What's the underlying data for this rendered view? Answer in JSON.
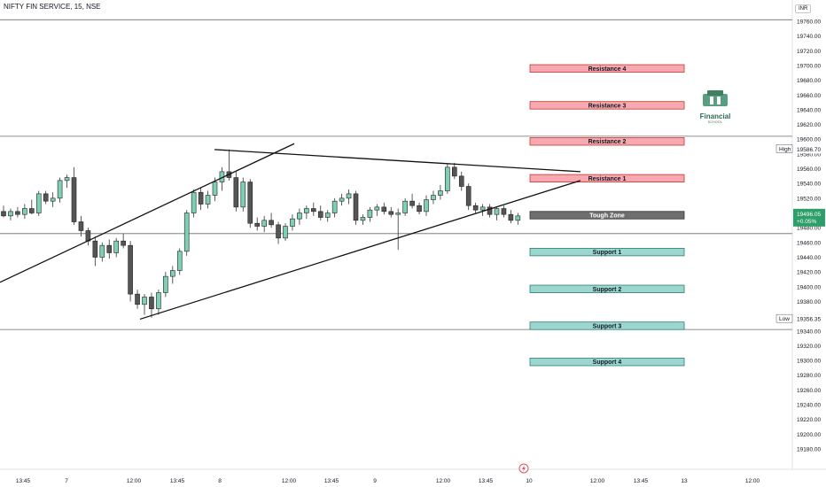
{
  "header": {
    "symbol": "NIFTY FIN SERVICE, 15, NSE",
    "currency": "INR"
  },
  "logo": {
    "title": "Financial",
    "subtitle": "SCHOOL"
  },
  "colors": {
    "up": "#26a69a",
    "down": "#333333",
    "resistance": "#f7a8b0",
    "support": "#9cd7cf",
    "tough": "#6e6e6e",
    "price_tag": "#2e9e6a"
  },
  "chart_data": {
    "type": "candlestick",
    "ylim": [
      19170,
      19770
    ],
    "y_ticks": [
      19760,
      19740,
      19720,
      19700,
      19680,
      19660,
      19640,
      19620,
      19600,
      19580,
      19560,
      19540,
      19520,
      19500,
      19480,
      19460,
      19440,
      19420,
      19400,
      19380,
      19360,
      19340,
      19320,
      19300,
      19280,
      19260,
      19240,
      19220,
      19200,
      19180
    ],
    "x_labels": [
      "13:45",
      "7",
      "12:00",
      "13:45",
      "8",
      "12:00",
      "13:45",
      "9",
      "12:00",
      "13:45",
      "10",
      "12:00",
      "13:45",
      "13",
      "12:00"
    ],
    "candles": [
      [
        19502,
        19510,
        19494,
        19496
      ],
      [
        19496,
        19506,
        19490,
        19502
      ],
      [
        19502,
        19508,
        19494,
        19498
      ],
      [
        19498,
        19512,
        19492,
        19506
      ],
      [
        19506,
        19518,
        19498,
        19500
      ],
      [
        19500,
        19530,
        19496,
        19526
      ],
      [
        19526,
        19530,
        19512,
        19516
      ],
      [
        19516,
        19528,
        19508,
        19520
      ],
      [
        19520,
        19548,
        19514,
        19544
      ],
      [
        19544,
        19552,
        19534,
        19548
      ],
      [
        19548,
        19562,
        19484,
        19488
      ],
      [
        19488,
        19496,
        19468,
        19476
      ],
      [
        19476,
        19480,
        19456,
        19462
      ],
      [
        19462,
        19468,
        19428,
        19440
      ],
      [
        19440,
        19460,
        19434,
        19456
      ],
      [
        19456,
        19464,
        19438,
        19446
      ],
      [
        19446,
        19466,
        19440,
        19462
      ],
      [
        19462,
        19472,
        19452,
        19456
      ],
      [
        19456,
        19462,
        19380,
        19390
      ],
      [
        19390,
        19396,
        19370,
        19376
      ],
      [
        19376,
        19390,
        19362,
        19386
      ],
      [
        19386,
        19392,
        19358,
        19370
      ],
      [
        19370,
        19396,
        19362,
        19392
      ],
      [
        19392,
        19420,
        19386,
        19414
      ],
      [
        19414,
        19428,
        19404,
        19422
      ],
      [
        19422,
        19452,
        19416,
        19448
      ],
      [
        19448,
        19504,
        19442,
        19500
      ],
      [
        19500,
        19532,
        19494,
        19528
      ],
      [
        19528,
        19534,
        19504,
        19512
      ],
      [
        19512,
        19530,
        19506,
        19524
      ],
      [
        19524,
        19548,
        19516,
        19542
      ],
      [
        19542,
        19562,
        19530,
        19556
      ],
      [
        19556,
        19586,
        19544,
        19548
      ],
      [
        19548,
        19556,
        19502,
        19508
      ],
      [
        19508,
        19548,
        19502,
        19542
      ],
      [
        19542,
        19546,
        19480,
        19486
      ],
      [
        19486,
        19494,
        19476,
        19482
      ],
      [
        19482,
        19496,
        19474,
        19490
      ],
      [
        19490,
        19500,
        19480,
        19484
      ],
      [
        19484,
        19488,
        19458,
        19466
      ],
      [
        19466,
        19486,
        19462,
        19482
      ],
      [
        19482,
        19498,
        19476,
        19492
      ],
      [
        19492,
        19506,
        19484,
        19500
      ],
      [
        19500,
        19510,
        19492,
        19506
      ],
      [
        19506,
        19514,
        19496,
        19502
      ],
      [
        19502,
        19510,
        19490,
        19494
      ],
      [
        19494,
        19504,
        19488,
        19500
      ],
      [
        19500,
        19520,
        19494,
        19516
      ],
      [
        19516,
        19526,
        19510,
        19520
      ],
      [
        19520,
        19532,
        19512,
        19526
      ],
      [
        19526,
        19530,
        19484,
        19490
      ],
      [
        19490,
        19498,
        19484,
        19494
      ],
      [
        19494,
        19508,
        19488,
        19504
      ],
      [
        19504,
        19512,
        19496,
        19508
      ],
      [
        19508,
        19514,
        19498,
        19502
      ],
      [
        19502,
        19508,
        19494,
        19498
      ],
      [
        19498,
        19506,
        19450,
        19500
      ],
      [
        19500,
        19520,
        19496,
        19516
      ],
      [
        19516,
        19526,
        19506,
        19510
      ],
      [
        19510,
        19514,
        19498,
        19502
      ],
      [
        19502,
        19524,
        19496,
        19518
      ],
      [
        19518,
        19530,
        19512,
        19524
      ],
      [
        19524,
        19538,
        19518,
        19530
      ],
      [
        19530,
        19566,
        19526,
        19562
      ],
      [
        19562,
        19568,
        19546,
        19550
      ],
      [
        19550,
        19556,
        19530,
        19536
      ],
      [
        19536,
        19540,
        19504,
        19510
      ],
      [
        19510,
        19514,
        19500,
        19504
      ],
      [
        19504,
        19512,
        19496,
        19508
      ],
      [
        19508,
        19512,
        19494,
        19498
      ],
      [
        19498,
        19508,
        19490,
        19506
      ],
      [
        19506,
        19510,
        19494,
        19498
      ],
      [
        19498,
        19504,
        19486,
        19490
      ],
      [
        19490,
        19500,
        19484,
        19496
      ]
    ],
    "trendlines": [
      {
        "name": "rising-channel-upper",
        "points": [
          [
            "13:45 (prev)",
            19406
          ],
          [
            "8 mid",
            19594
          ]
        ]
      },
      {
        "name": "rising-channel-lower",
        "points": [
          [
            "12:00 day 7",
            19356
          ],
          [
            "10 ext",
            19544
          ]
        ]
      },
      {
        "name": "falling-resistance-line",
        "points": [
          [
            "8",
            19586
          ],
          [
            "10 ext",
            19556
          ]
        ]
      }
    ],
    "horizontal_lines": [
      19762,
      19604,
      19472,
      19342
    ],
    "zones": [
      {
        "label": "Resistance 4",
        "kind": "resistance",
        "value": 19696
      },
      {
        "label": "Resistance 3",
        "kind": "resistance",
        "value": 19646
      },
      {
        "label": "Resistance 2",
        "kind": "resistance",
        "value": 19597
      },
      {
        "label": "Resistance 1",
        "kind": "resistance",
        "value": 19547
      },
      {
        "label": "Tough Zone",
        "kind": "tough",
        "value": 19497
      },
      {
        "label": "Support 1",
        "kind": "support",
        "value": 19447
      },
      {
        "label": "Support 2",
        "kind": "support",
        "value": 19397
      },
      {
        "label": "Support 3",
        "kind": "support",
        "value": 19347
      },
      {
        "label": "Support 4",
        "kind": "support",
        "value": 19298
      }
    ],
    "markers": {
      "high": {
        "label": "High",
        "value": "19586.70"
      },
      "low": {
        "label": "Low",
        "value": "19356.35"
      },
      "last": {
        "value": "19496.05",
        "change": "+0.05%"
      }
    }
  }
}
